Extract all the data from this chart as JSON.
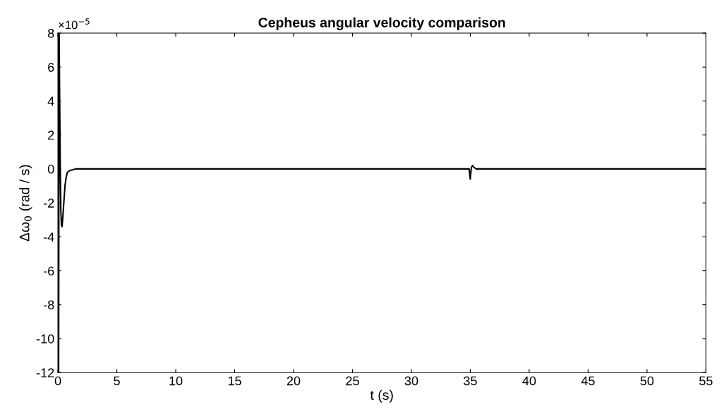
{
  "chart_data": {
    "type": "line",
    "title": "Cepheus angular velocity comparison",
    "xlabel": "t (s)",
    "ylabel": "Δω$_{0}$ (rad / s)",
    "annotations": [
      "×10$^{−5}$"
    ],
    "x": [
      0,
      0.03,
      0.06,
      0.1,
      0.15,
      0.2,
      0.25,
      0.3,
      0.35,
      0.4,
      0.5,
      0.6,
      0.7,
      0.8,
      1.0,
      1.5,
      5,
      10,
      20,
      30,
      34.9,
      35.0,
      35.05,
      35.1,
      35.2,
      35.3,
      35.5,
      35.8,
      36.5,
      40,
      45,
      48,
      50,
      55
    ],
    "series": [
      {
        "color": "#000000",
        "values": [
          -12,
          8,
          -12,
          8,
          4,
          0,
          -2.5,
          -3.3,
          -3.4,
          -3.0,
          -2.0,
          -1.0,
          -0.5,
          -0.2,
          -0.1,
          0,
          0,
          0,
          0,
          0,
          0,
          -0.6,
          -0.2,
          0.1,
          0.2,
          0.1,
          0,
          0,
          0,
          0,
          0,
          0,
          0,
          0
        ]
      }
    ],
    "xlim": [
      0,
      55
    ],
    "xticks": [
      0,
      5,
      10,
      15,
      20,
      25,
      30,
      35,
      40,
      45,
      50,
      55
    ],
    "ylim": [
      -12,
      8
    ],
    "yticks": [
      -12,
      -10,
      -8,
      -6,
      -4,
      -2,
      0,
      2,
      4,
      6,
      8
    ],
    "grid": false,
    "legend": false,
    "marker": "none",
    "line_style": "solid"
  }
}
